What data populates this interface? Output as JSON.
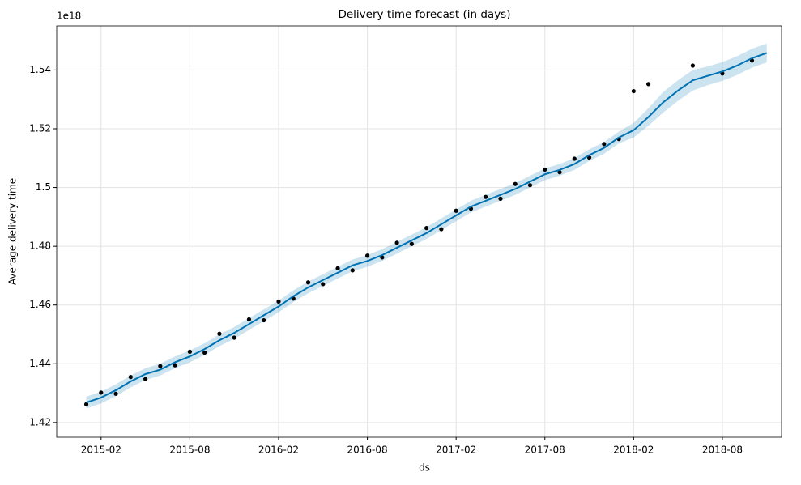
{
  "chart_data": {
    "type": "forecast",
    "title": "Delivery time forecast (in days)",
    "x_label": "ds",
    "y_label": "Average delivery time",
    "y_offset_label": "1e18",
    "xlim": [
      "2014-11",
      "2018-12"
    ],
    "ylim": [
      1.415,
      1.555
    ],
    "xticks": [
      "2015-02",
      "2015-08",
      "2016-02",
      "2016-08",
      "2017-02",
      "2017-08",
      "2018-02",
      "2018-08"
    ],
    "yticks": [
      1.42,
      1.44,
      1.46,
      1.48,
      1.5,
      1.52,
      1.54
    ],
    "grid": true,
    "forecast": {
      "color": "#0072b2",
      "x": [
        "2015-01",
        "2015-02",
        "2015-03",
        "2015-04",
        "2015-05",
        "2015-06",
        "2015-07",
        "2015-08",
        "2015-09",
        "2015-10",
        "2015-11",
        "2015-12",
        "2016-01",
        "2016-02",
        "2016-03",
        "2016-04",
        "2016-05",
        "2016-06",
        "2016-07",
        "2016-08",
        "2016-09",
        "2016-10",
        "2016-11",
        "2016-12",
        "2017-01",
        "2017-02",
        "2017-03",
        "2017-04",
        "2017-05",
        "2017-06",
        "2017-07",
        "2017-08",
        "2017-09",
        "2017-10",
        "2017-11",
        "2017-12",
        "2018-01",
        "2018-02",
        "2018-03",
        "2018-04",
        "2018-05",
        "2018-06",
        "2018-07",
        "2018-08",
        "2018-09",
        "2018-10",
        "2018-11"
      ],
      "values": [
        1.4268,
        1.4285,
        1.431,
        1.434,
        1.4365,
        1.438,
        1.4405,
        1.4425,
        1.445,
        1.448,
        1.4505,
        1.4535,
        1.4565,
        1.4595,
        1.463,
        1.466,
        1.4685,
        1.471,
        1.4735,
        1.475,
        1.477,
        1.4795,
        1.482,
        1.4845,
        1.4875,
        1.4905,
        1.4935,
        1.4955,
        1.4975,
        1.4995,
        1.502,
        1.5045,
        1.506,
        1.508,
        1.511,
        1.5135,
        1.517,
        1.5195,
        1.524,
        1.529,
        1.533,
        1.5365,
        1.538,
        1.5395,
        1.5415,
        1.544,
        1.5458
      ],
      "lower": [
        1.4248,
        1.4265,
        1.429,
        1.432,
        1.4345,
        1.436,
        1.4385,
        1.4405,
        1.443,
        1.446,
        1.4485,
        1.4515,
        1.4545,
        1.4575,
        1.461,
        1.464,
        1.4665,
        1.469,
        1.4715,
        1.473,
        1.475,
        1.4775,
        1.48,
        1.4825,
        1.4855,
        1.4885,
        1.4915,
        1.4935,
        1.4955,
        1.4975,
        1.5,
        1.5025,
        1.504,
        1.506,
        1.509,
        1.5115,
        1.515,
        1.517,
        1.521,
        1.5255,
        1.5295,
        1.533,
        1.5348,
        1.5363,
        1.5383,
        1.5408,
        1.5426
      ],
      "upper": [
        1.4288,
        1.4305,
        1.433,
        1.436,
        1.4385,
        1.44,
        1.4425,
        1.4445,
        1.447,
        1.45,
        1.4525,
        1.4555,
        1.4585,
        1.4615,
        1.465,
        1.468,
        1.4705,
        1.473,
        1.4755,
        1.477,
        1.479,
        1.4815,
        1.484,
        1.4865,
        1.4895,
        1.4925,
        1.4955,
        1.4975,
        1.4995,
        1.5015,
        1.504,
        1.5065,
        1.508,
        1.51,
        1.513,
        1.5155,
        1.519,
        1.522,
        1.527,
        1.5325,
        1.5365,
        1.54,
        1.5412,
        1.5427,
        1.5447,
        1.5472,
        1.549
      ]
    },
    "observed": {
      "color": "#000000",
      "x": [
        "2015-01",
        "2015-02",
        "2015-03",
        "2015-04",
        "2015-05",
        "2015-06",
        "2015-07",
        "2015-08",
        "2015-09",
        "2015-10",
        "2015-11",
        "2015-12",
        "2016-01",
        "2016-02",
        "2016-03",
        "2016-04",
        "2016-05",
        "2016-06",
        "2016-07",
        "2016-08",
        "2016-09",
        "2016-10",
        "2016-11",
        "2016-12",
        "2017-01",
        "2017-02",
        "2017-03",
        "2017-04",
        "2017-05",
        "2017-06",
        "2017-07",
        "2017-08",
        "2017-09",
        "2017-10",
        "2017-11",
        "2017-12",
        "2018-01",
        "2018-02",
        "2018-03",
        "2018-06",
        "2018-08",
        "2018-10"
      ],
      "values": [
        1.4262,
        1.4302,
        1.4298,
        1.4355,
        1.4348,
        1.4392,
        1.4395,
        1.4441,
        1.4438,
        1.4502,
        1.4489,
        1.4551,
        1.4548,
        1.4612,
        1.4622,
        1.4677,
        1.4671,
        1.4725,
        1.4718,
        1.4768,
        1.4762,
        1.4812,
        1.4808,
        1.4862,
        1.4858,
        1.4921,
        1.4928,
        1.4968,
        1.4962,
        1.5012,
        1.5008,
        1.5061,
        1.5052,
        1.5098,
        1.5102,
        1.5148,
        1.5165,
        1.5328,
        1.5352,
        1.5415,
        1.5388,
        1.5432
      ]
    }
  }
}
